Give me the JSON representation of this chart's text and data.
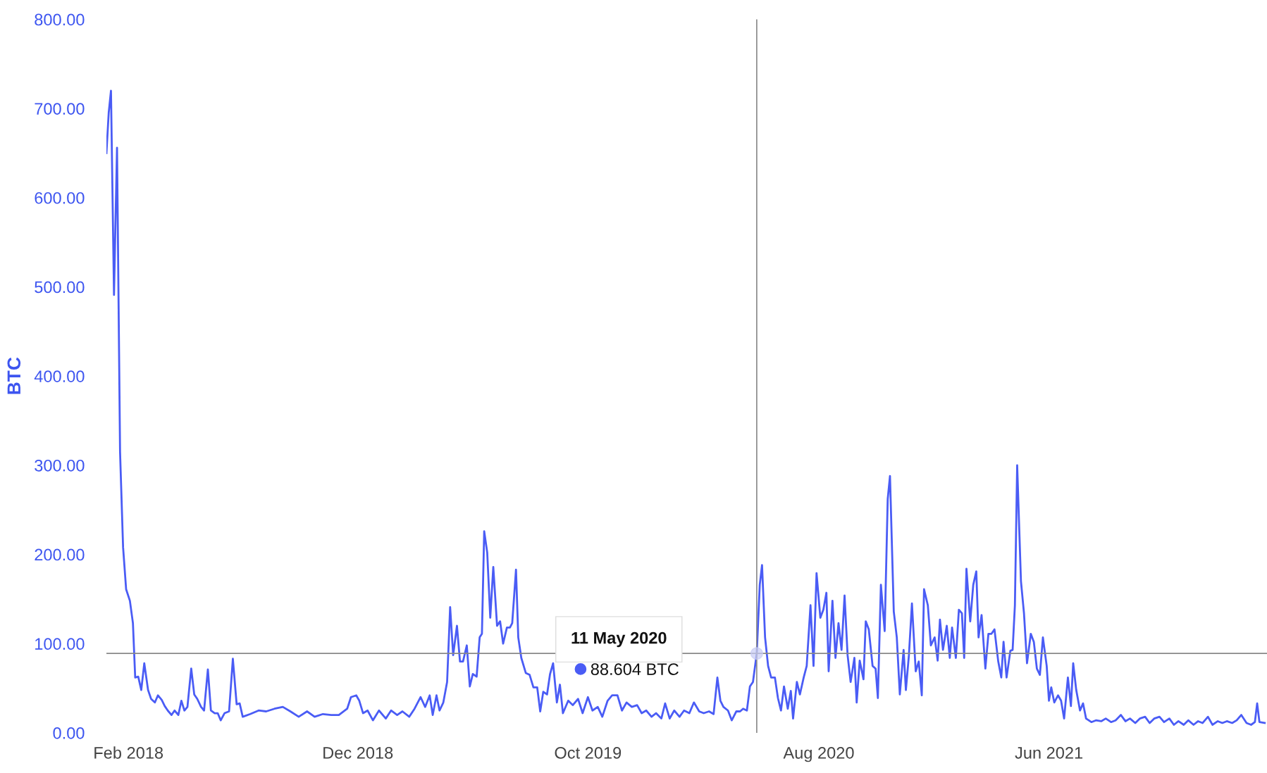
{
  "chart_data": {
    "type": "line",
    "ylabel": "BTC",
    "x": [
      "2018-01-03",
      "2018-01-06",
      "2018-01-09",
      "2018-01-13",
      "2018-01-17",
      "2018-01-21",
      "2018-01-25",
      "2018-01-29",
      "2018-02-03",
      "2018-02-07",
      "2018-02-10",
      "2018-02-14",
      "2018-02-18",
      "2018-02-22",
      "2018-02-27",
      "2018-03-03",
      "2018-03-08",
      "2018-03-12",
      "2018-03-17",
      "2018-03-21",
      "2018-03-25",
      "2018-03-30",
      "2018-04-03",
      "2018-04-08",
      "2018-04-12",
      "2018-04-16",
      "2018-04-20",
      "2018-04-25",
      "2018-04-29",
      "2018-05-03",
      "2018-05-08",
      "2018-05-12",
      "2018-05-17",
      "2018-05-21",
      "2018-05-26",
      "2018-05-30",
      "2018-06-03",
      "2018-06-08",
      "2018-06-14",
      "2018-06-19",
      "2018-06-24",
      "2018-06-28",
      "2018-07-02",
      "2018-07-12",
      "2018-07-23",
      "2018-08-02",
      "2018-08-13",
      "2018-08-24",
      "2018-09-03",
      "2018-09-14",
      "2018-09-25",
      "2018-10-05",
      "2018-10-16",
      "2018-10-27",
      "2018-11-06",
      "2018-11-17",
      "2018-11-22",
      "2018-11-29",
      "2018-12-03",
      "2018-12-08",
      "2018-12-14",
      "2018-12-21",
      "2018-12-29",
      "2019-01-07",
      "2019-01-14",
      "2019-01-22",
      "2019-01-29",
      "2019-02-07",
      "2019-02-14",
      "2019-02-22",
      "2019-02-28",
      "2019-03-06",
      "2019-03-10",
      "2019-03-15",
      "2019-03-19",
      "2019-03-24",
      "2019-03-29",
      "2019-04-02",
      "2019-04-06",
      "2019-04-11",
      "2019-04-15",
      "2019-04-19",
      "2019-04-24",
      "2019-04-28",
      "2019-05-02",
      "2019-05-07",
      "2019-05-11",
      "2019-05-14",
      "2019-05-17",
      "2019-05-21",
      "2019-05-25",
      "2019-05-29",
      "2019-06-03",
      "2019-06-07",
      "2019-06-11",
      "2019-06-16",
      "2019-06-20",
      "2019-06-23",
      "2019-06-28",
      "2019-07-01",
      "2019-07-05",
      "2019-07-11",
      "2019-07-16",
      "2019-07-21",
      "2019-07-26",
      "2019-07-30",
      "2019-08-03",
      "2019-08-08",
      "2019-08-12",
      "2019-08-16",
      "2019-08-21",
      "2019-08-25",
      "2019-08-29",
      "2019-09-05",
      "2019-09-11",
      "2019-09-18",
      "2019-09-24",
      "2019-10-01",
      "2019-10-07",
      "2019-10-14",
      "2019-10-20",
      "2019-10-27",
      "2019-11-02",
      "2019-11-09",
      "2019-11-15",
      "2019-11-21",
      "2019-11-28",
      "2019-12-05",
      "2019-12-11",
      "2019-12-17",
      "2019-12-24",
      "2019-12-30",
      "2020-01-06",
      "2020-01-11",
      "2020-01-17",
      "2020-01-23",
      "2020-01-30",
      "2020-02-05",
      "2020-02-12",
      "2020-02-18",
      "2020-02-25",
      "2020-03-02",
      "2020-03-09",
      "2020-03-15",
      "2020-03-20",
      "2020-03-24",
      "2020-03-28",
      "2020-04-03",
      "2020-04-08",
      "2020-04-14",
      "2020-04-19",
      "2020-04-23",
      "2020-04-28",
      "2020-05-02",
      "2020-05-06",
      "2020-05-11",
      "2020-05-15",
      "2020-05-18",
      "2020-05-22",
      "2020-05-26",
      "2020-05-30",
      "2020-06-04",
      "2020-06-08",
      "2020-06-12",
      "2020-06-16",
      "2020-06-21",
      "2020-06-25",
      "2020-06-28",
      "2020-07-03",
      "2020-07-07",
      "2020-07-12",
      "2020-07-16",
      "2020-07-21",
      "2020-07-25",
      "2020-07-29",
      "2020-08-03",
      "2020-08-07",
      "2020-08-11",
      "2020-08-14",
      "2020-08-19",
      "2020-08-23",
      "2020-08-27",
      "2020-08-31",
      "2020-09-04",
      "2020-09-08",
      "2020-09-12",
      "2020-09-17",
      "2020-09-20",
      "2020-09-24",
      "2020-09-29",
      "2020-10-02",
      "2020-10-06",
      "2020-10-11",
      "2020-10-15",
      "2020-10-18",
      "2020-10-22",
      "2020-10-27",
      "2020-10-31",
      "2020-11-03",
      "2020-11-08",
      "2020-11-12",
      "2020-11-16",
      "2020-11-21",
      "2020-11-24",
      "2020-11-28",
      "2020-12-02",
      "2020-12-07",
      "2020-12-11",
      "2020-12-15",
      "2020-12-18",
      "2020-12-23",
      "2020-12-27",
      "2021-01-01",
      "2021-01-05",
      "2021-01-08",
      "2021-01-12",
      "2021-01-17",
      "2021-01-21",
      "2021-01-24",
      "2021-01-29",
      "2021-02-02",
      "2021-02-06",
      "2021-02-09",
      "2021-02-12",
      "2021-02-17",
      "2021-02-21",
      "2021-02-25",
      "2021-02-28",
      "2021-03-04",
      "2021-03-09",
      "2021-03-13",
      "2021-03-17",
      "2021-03-21",
      "2021-03-26",
      "2021-03-30",
      "2021-04-02",
      "2021-04-06",
      "2021-04-11",
      "2021-04-14",
      "2021-04-17",
      "2021-04-20",
      "2021-04-25",
      "2021-04-29",
      "2021-05-03",
      "2021-05-08",
      "2021-05-12",
      "2021-05-16",
      "2021-05-20",
      "2021-05-24",
      "2021-05-29",
      "2021-06-01",
      "2021-06-04",
      "2021-06-08",
      "2021-06-13",
      "2021-06-17",
      "2021-06-21",
      "2021-06-26",
      "2021-06-30",
      "2021-07-03",
      "2021-07-07",
      "2021-07-12",
      "2021-07-16",
      "2021-07-20",
      "2021-07-27",
      "2021-08-02",
      "2021-08-09",
      "2021-08-15",
      "2021-08-22",
      "2021-08-28",
      "2021-09-04",
      "2021-09-10",
      "2021-09-16",
      "2021-09-23",
      "2021-09-29",
      "2021-10-06",
      "2021-10-12",
      "2021-10-18",
      "2021-10-25",
      "2021-10-31",
      "2021-11-07",
      "2021-11-13",
      "2021-11-19",
      "2021-11-26",
      "2021-12-02",
      "2021-12-09",
      "2021-12-15",
      "2021-12-21",
      "2021-12-28",
      "2022-01-03",
      "2022-01-10",
      "2022-01-16",
      "2022-01-22",
      "2022-01-29",
      "2022-02-04",
      "2022-02-10",
      "2022-02-17",
      "2022-02-23",
      "2022-02-28",
      "2022-03-03",
      "2022-03-06",
      "2022-03-13"
    ],
    "series": [
      {
        "color": "#4a5cf5",
        "values": [
          650,
          695,
          720,
          491,
          656,
          315,
          208,
          161,
          148,
          123,
          62,
          63,
          48,
          78,
          48,
          38,
          34,
          42,
          37,
          30,
          25,
          20,
          25,
          20,
          36,
          25,
          29,
          72,
          43,
          38,
          29,
          25,
          71,
          25,
          22,
          22,
          14,
          22,
          24,
          83,
          32,
          33,
          18,
          21,
          25,
          24,
          27,
          29,
          24,
          18,
          24,
          18,
          21,
          20,
          20,
          27,
          40,
          42,
          36,
          22,
          25,
          14,
          25,
          16,
          25,
          20,
          24,
          18,
          27,
          40,
          29,
          42,
          20,
          42,
          25,
          34,
          57,
          141,
          87,
          120,
          80,
          80,
          98,
          52,
          66,
          63,
          107,
          111,
          226,
          202,
          129,
          186,
          120,
          125,
          100,
          118,
          118,
          123,
          183,
          107,
          84,
          67,
          65,
          51,
          51,
          24,
          46,
          43,
          66,
          78,
          34,
          54,
          22,
          36,
          31,
          38,
          22,
          40,
          25,
          29,
          18,
          36,
          42,
          42,
          25,
          34,
          29,
          31,
          22,
          25,
          18,
          22,
          16,
          33,
          16,
          25,
          18,
          25,
          22,
          34,
          24,
          22,
          24,
          21,
          62,
          36,
          29,
          25,
          14,
          24,
          24,
          27,
          25,
          52,
          57,
          89,
          166,
          188,
          107,
          75,
          62,
          62,
          39,
          25,
          52,
          27,
          47,
          16,
          57,
          43,
          62,
          75,
          143,
          75,
          179,
          129,
          138,
          157,
          69,
          148,
          84,
          123,
          93,
          154,
          87,
          57,
          84,
          34,
          81,
          60,
          125,
          116,
          75,
          72,
          39,
          166,
          114,
          262,
          288,
          136,
          107,
          43,
          93,
          48,
          87,
          145,
          69,
          80,
          42,
          161,
          143,
          98,
          107,
          81,
          127,
          93,
          120,
          84,
          118,
          84,
          138,
          134,
          84,
          184,
          125,
          166,
          181,
          107,
          132,
          72,
          111,
          111,
          116,
          80,
          62,
          102,
          62,
          92,
          93,
          143,
          300,
          170,
          134,
          78,
          111,
          102,
          72,
          65,
          107,
          75,
          36,
          51,
          34,
          42,
          36,
          16,
          62,
          30,
          78,
          48,
          25,
          33,
          16,
          12,
          14,
          13,
          16,
          12,
          14,
          20,
          13,
          16,
          11,
          16,
          18,
          11,
          16,
          18,
          12,
          16,
          9,
          13,
          9,
          14,
          9,
          13,
          11,
          18,
          9,
          13,
          11,
          13,
          11,
          14,
          20,
          11,
          9,
          12,
          33,
          12,
          11
        ]
      }
    ],
    "xlim": [
      "2018-01-03",
      "2022-03-16"
    ],
    "xticks": [
      {
        "value": "2018-02-01",
        "label": "Feb 2018"
      },
      {
        "value": "2018-12-01",
        "label": "Dec 2018"
      },
      {
        "value": "2019-10-01",
        "label": "Oct 2019"
      },
      {
        "value": "2020-08-01",
        "label": "Aug 2020"
      },
      {
        "value": "2021-06-01",
        "label": "Jun 2021"
      }
    ],
    "ylim": [
      0,
      800
    ],
    "yticks": [
      {
        "value": 0,
        "label": "0.00"
      },
      {
        "value": 100,
        "label": "100.00"
      },
      {
        "value": 200,
        "label": "200.00"
      },
      {
        "value": 300,
        "label": "300.00"
      },
      {
        "value": 400,
        "label": "400.00"
      },
      {
        "value": 500,
        "label": "500.00"
      },
      {
        "value": 600,
        "label": "600.00"
      },
      {
        "value": 700,
        "label": "700.00"
      },
      {
        "value": 800,
        "label": "800.00"
      }
    ],
    "ref_lines": [
      {
        "axis": "x",
        "value": "2020-05-11",
        "color": "#888888"
      },
      {
        "axis": "y",
        "value": 89,
        "color": "#888888"
      }
    ],
    "annotations": [
      "11 May 2020",
      "88.604 BTC"
    ],
    "grid": false,
    "marker": "none",
    "line_style": "solid"
  }
}
